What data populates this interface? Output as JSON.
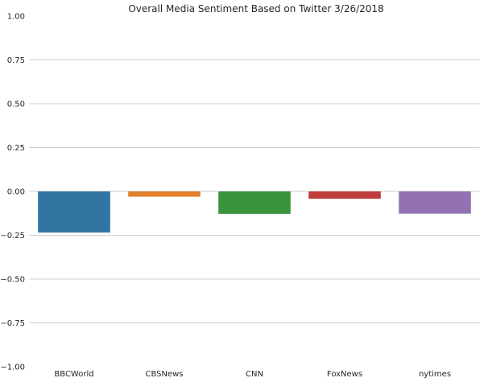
{
  "chart_data": {
    "type": "bar",
    "title": "Overall Media Sentiment Based on Twitter 3/26/2018",
    "xlabel": "",
    "ylabel": "",
    "categories": [
      "BBCWorld",
      "CBSNews",
      "CNN",
      "FoxNews",
      "nytimes"
    ],
    "values": [
      -0.235,
      -0.03,
      -0.128,
      -0.042,
      -0.127
    ],
    "colors": [
      "#3274a1",
      "#e1812c",
      "#3a923a",
      "#c03d3e",
      "#9372b2"
    ],
    "ylim": [
      -1.0,
      1.0
    ],
    "yticks": [
      -1.0,
      -0.75,
      -0.5,
      -0.25,
      0.0,
      0.25,
      0.5,
      0.75,
      1.0
    ],
    "ytick_labels": [
      "−1.00",
      "−0.75",
      "−0.50",
      "−0.25",
      "0.00",
      "0.25",
      "0.50",
      "0.75",
      "1.00"
    ],
    "grid": true,
    "grid_color": "#cccccc",
    "legend": "none"
  }
}
